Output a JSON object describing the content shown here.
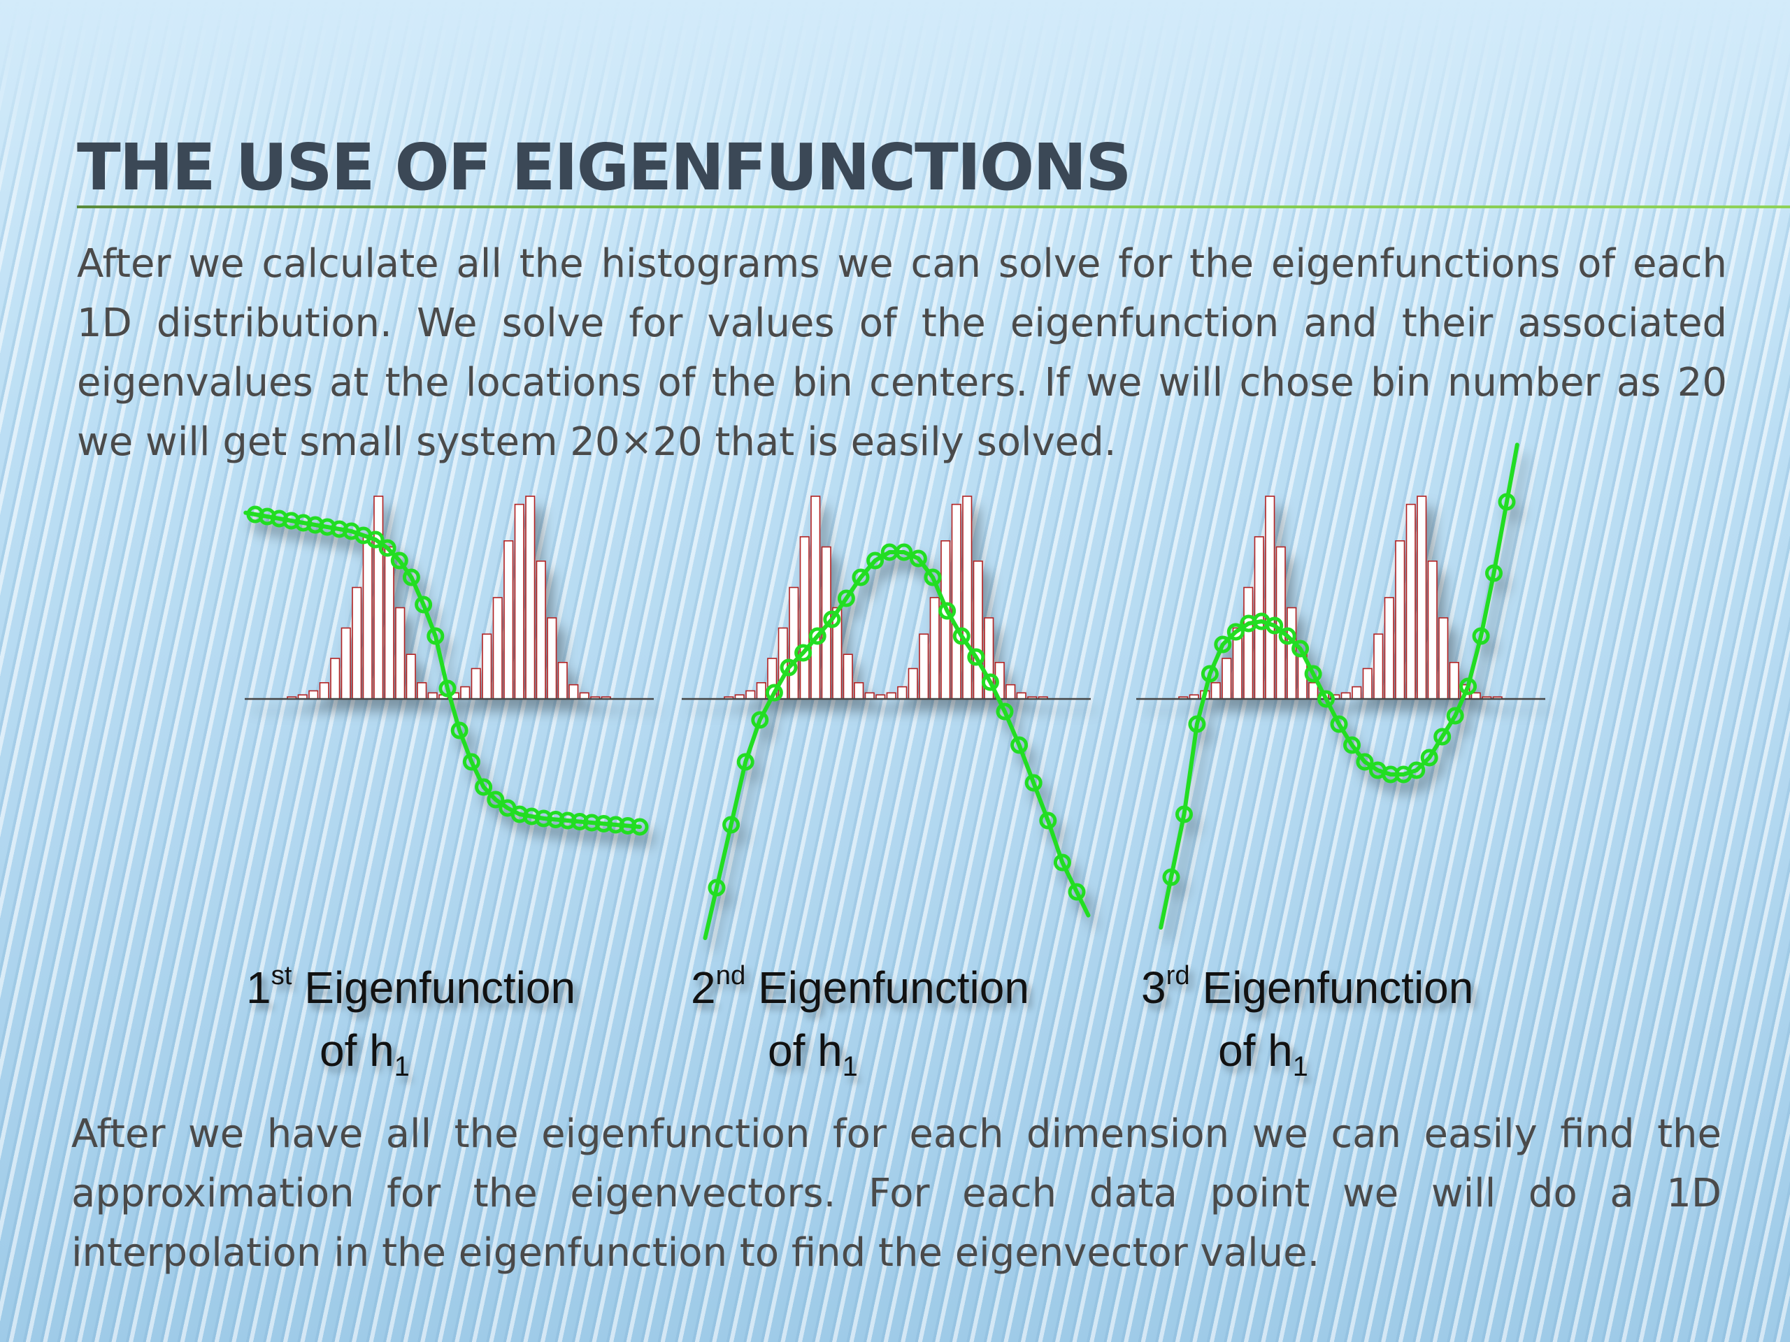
{
  "slide": {
    "title": "THE USE OF EIGENFUNCTIONS",
    "intro": "After we calculate all the histograms we can solve for the eigenfunctions of each 1D distribution. We solve for values of the eigenfunction and their associated eigenvalues at the locations of the bin centers. If we will chose bin number as 20 we will get small system 20×20 that is easily solved.",
    "outro": "After we have all the eigenfunction for each dimension we can easily find the approximation for the eigenvectors. For each data point we will do a 1D interpolation in the eigenfunction to find the eigenvector value."
  },
  "captions": [
    {
      "num": "1",
      "sup": "st",
      "word": "Eigenfunction",
      "of": "of h",
      "sub": "1"
    },
    {
      "num": "2",
      "sup": "nd",
      "word": "Eigenfunction",
      "of": "of h",
      "sub": "1"
    },
    {
      "num": "3",
      "sup": "rd",
      "word": "Eigenfunction",
      "of": "of h",
      "sub": "1"
    }
  ],
  "colors": {
    "title": "#3b4856",
    "body_text": "#4a4a4a",
    "accent_rule": "#79c64a",
    "eigen_curve": "#22dd22",
    "histogram_bar_edge": "#b22222"
  },
  "chart_data": [
    {
      "type": "bar",
      "histogram_bins": [
        0.01,
        0.02,
        0.04,
        0.08,
        0.2,
        0.35,
        0.55,
        0.8,
        1.0,
        0.75,
        0.45,
        0.22,
        0.08,
        0.03,
        0.02,
        0.03,
        0.06,
        0.15,
        0.32,
        0.5,
        0.78,
        0.96,
        1.0,
        0.68,
        0.4,
        0.18,
        0.07,
        0.03,
        0.01,
        0.01
      ],
      "eigenfunction_values": [
        0.88,
        0.87,
        0.86,
        0.85,
        0.84,
        0.83,
        0.82,
        0.81,
        0.8,
        0.78,
        0.76,
        0.72,
        0.66,
        0.58,
        0.45,
        0.3,
        0.05,
        -0.15,
        -0.3,
        -0.42,
        -0.48,
        -0.52,
        -0.55,
        -0.56,
        -0.57,
        -0.575,
        -0.58,
        -0.585,
        -0.59,
        -0.595,
        -0.6,
        -0.605,
        -0.61
      ]
    },
    {
      "type": "bar",
      "histogram_bins": [
        0.01,
        0.02,
        0.04,
        0.08,
        0.2,
        0.35,
        0.55,
        0.8,
        1.0,
        0.75,
        0.45,
        0.22,
        0.08,
        0.03,
        0.02,
        0.03,
        0.06,
        0.15,
        0.32,
        0.5,
        0.78,
        0.96,
        1.0,
        0.68,
        0.4,
        0.18,
        0.07,
        0.03,
        0.01,
        0.01
      ],
      "eigenfunction_values": [
        -0.9,
        -0.6,
        -0.3,
        -0.1,
        0.03,
        0.15,
        0.22,
        0.3,
        0.38,
        0.48,
        0.58,
        0.66,
        0.7,
        0.7,
        0.67,
        0.58,
        0.42,
        0.3,
        0.2,
        0.08,
        -0.06,
        -0.22,
        -0.4,
        -0.58,
        -0.78,
        -0.92
      ]
    },
    {
      "type": "bar",
      "histogram_bins": [
        0.01,
        0.02,
        0.04,
        0.08,
        0.2,
        0.35,
        0.55,
        0.8,
        1.0,
        0.75,
        0.45,
        0.22,
        0.08,
        0.03,
        0.02,
        0.03,
        0.06,
        0.15,
        0.32,
        0.5,
        0.78,
        0.96,
        1.0,
        0.68,
        0.4,
        0.18,
        0.07,
        0.03,
        0.01,
        0.01
      ],
      "eigenfunction_values": [
        -0.85,
        -0.55,
        -0.12,
        0.12,
        0.26,
        0.32,
        0.36,
        0.37,
        0.35,
        0.3,
        0.24,
        0.12,
        0.0,
        -0.12,
        -0.22,
        -0.3,
        -0.34,
        -0.36,
        -0.36,
        -0.34,
        -0.28,
        -0.18,
        -0.08,
        0.06,
        0.3,
        0.6,
        0.94
      ]
    }
  ]
}
